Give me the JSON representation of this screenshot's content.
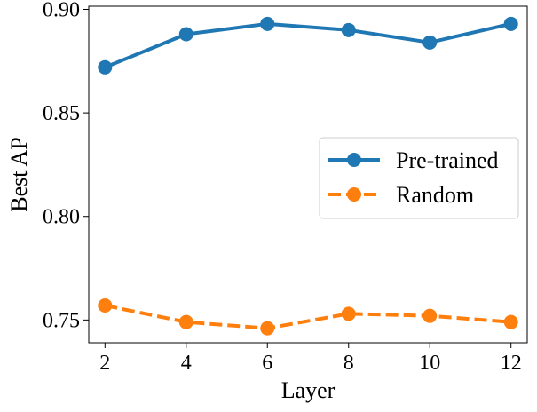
{
  "chart_data": {
    "type": "line",
    "title": "",
    "xlabel": "Layer",
    "ylabel": "Best AP",
    "x": [
      2,
      4,
      6,
      8,
      10,
      12
    ],
    "xticks": [
      "2",
      "4",
      "6",
      "8",
      "10",
      "12"
    ],
    "yticks": [
      "0.75",
      "0.80",
      "0.85",
      "0.90"
    ],
    "xlim": [
      1.6,
      12.4
    ],
    "ylim": [
      0.739,
      0.9015
    ],
    "grid": false,
    "legend_position": "center-right",
    "series": [
      {
        "name": "Pre-trained",
        "color": "#1f77b4",
        "linestyle": "solid",
        "marker": "circle",
        "values": [
          0.872,
          0.888,
          0.893,
          0.89,
          0.884,
          0.893
        ]
      },
      {
        "name": "Random",
        "color": "#ff7f0e",
        "linestyle": "dashed",
        "marker": "circle",
        "values": [
          0.757,
          0.749,
          0.746,
          0.753,
          0.752,
          0.749
        ]
      }
    ]
  }
}
